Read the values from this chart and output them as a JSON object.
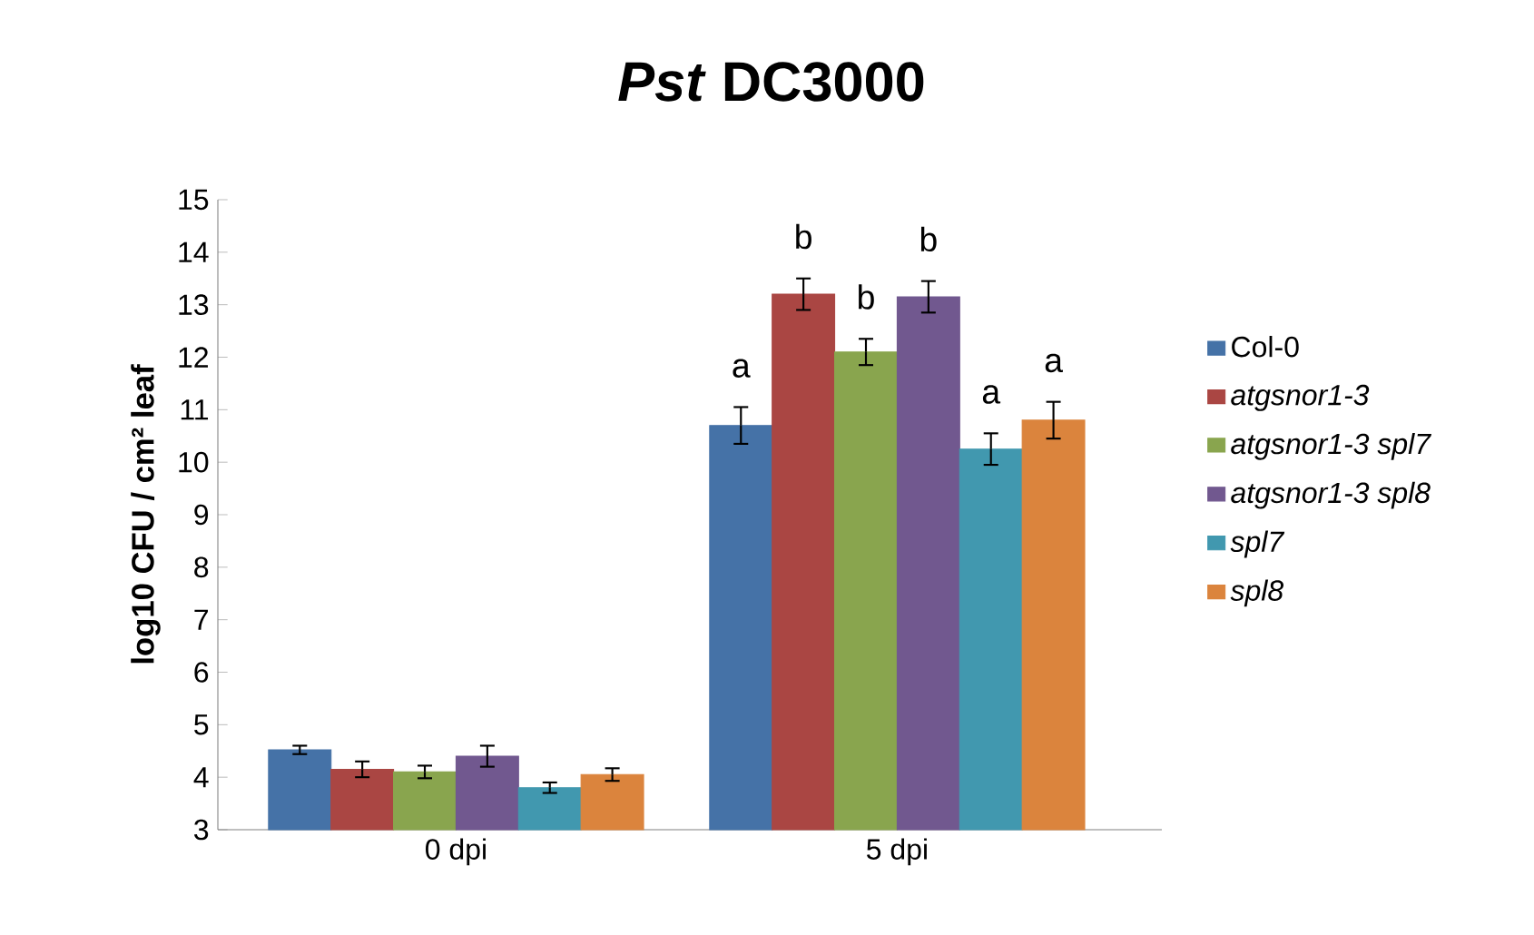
{
  "chart_data": {
    "type": "bar",
    "title": "*Pst* DC3000",
    "ylabel": "log10 CFU / cm² leaf",
    "categories": [
      "0 dpi",
      "5 dpi"
    ],
    "series": [
      {
        "name": "Col-0",
        "color": "#4572a7",
        "values": [
          4.52,
          10.7
        ],
        "errors": [
          0.08,
          0.35
        ]
      },
      {
        "name": "*atgsnor1-3*",
        "color": "#aa4643",
        "values": [
          4.15,
          13.2
        ],
        "errors": [
          0.15,
          0.3
        ]
      },
      {
        "name": "*atgsnor1-3 spl7*",
        "color": "#89a54e",
        "values": [
          4.1,
          12.1
        ],
        "errors": [
          0.12,
          0.25
        ]
      },
      {
        "name": "*atgsnor1-3 spl8*",
        "color": "#71588f",
        "values": [
          4.4,
          13.15
        ],
        "errors": [
          0.2,
          0.3
        ]
      },
      {
        "name": "*spl7*",
        "color": "#4198af",
        "values": [
          3.8,
          10.25
        ],
        "errors": [
          0.1,
          0.3
        ]
      },
      {
        "name": "*spl8*",
        "color": "#db843d",
        "values": [
          4.05,
          10.8
        ],
        "errors": [
          0.12,
          0.35
        ]
      }
    ],
    "ylim": [
      3,
      15
    ],
    "yticks": [
      3,
      4,
      5,
      6,
      7,
      8,
      9,
      10,
      11,
      12,
      13,
      14,
      15
    ],
    "annotations": [
      "a",
      "b",
      "b",
      "b",
      "a",
      "a"
    ],
    "legend": "right",
    "grid": false
  }
}
